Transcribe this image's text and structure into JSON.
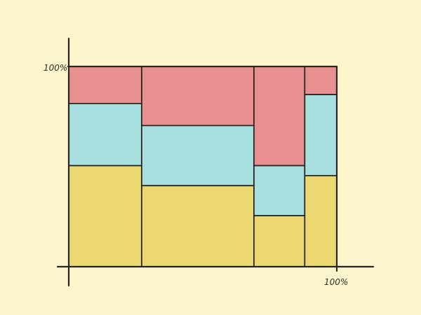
{
  "chart_data": {
    "type": "mosaic",
    "title": "",
    "xlabel": "",
    "ylabel": "",
    "x_tick_label": "100%",
    "y_tick_label": "100%",
    "grid": false,
    "legend": "none",
    "colors": [
      "#ebd870",
      "#a8e0e0",
      "#e89090"
    ],
    "columns": [
      {
        "width_pct": 27,
        "segments_pct": [
          50.5,
          31,
          18.5
        ]
      },
      {
        "width_pct": 42,
        "segments_pct": [
          40.5,
          30,
          29.5
        ]
      },
      {
        "width_pct": 19,
        "segments_pct": [
          25.5,
          25,
          49.5
        ]
      },
      {
        "width_pct": 12,
        "segments_pct": [
          45.5,
          40.5,
          14
        ]
      }
    ]
  }
}
